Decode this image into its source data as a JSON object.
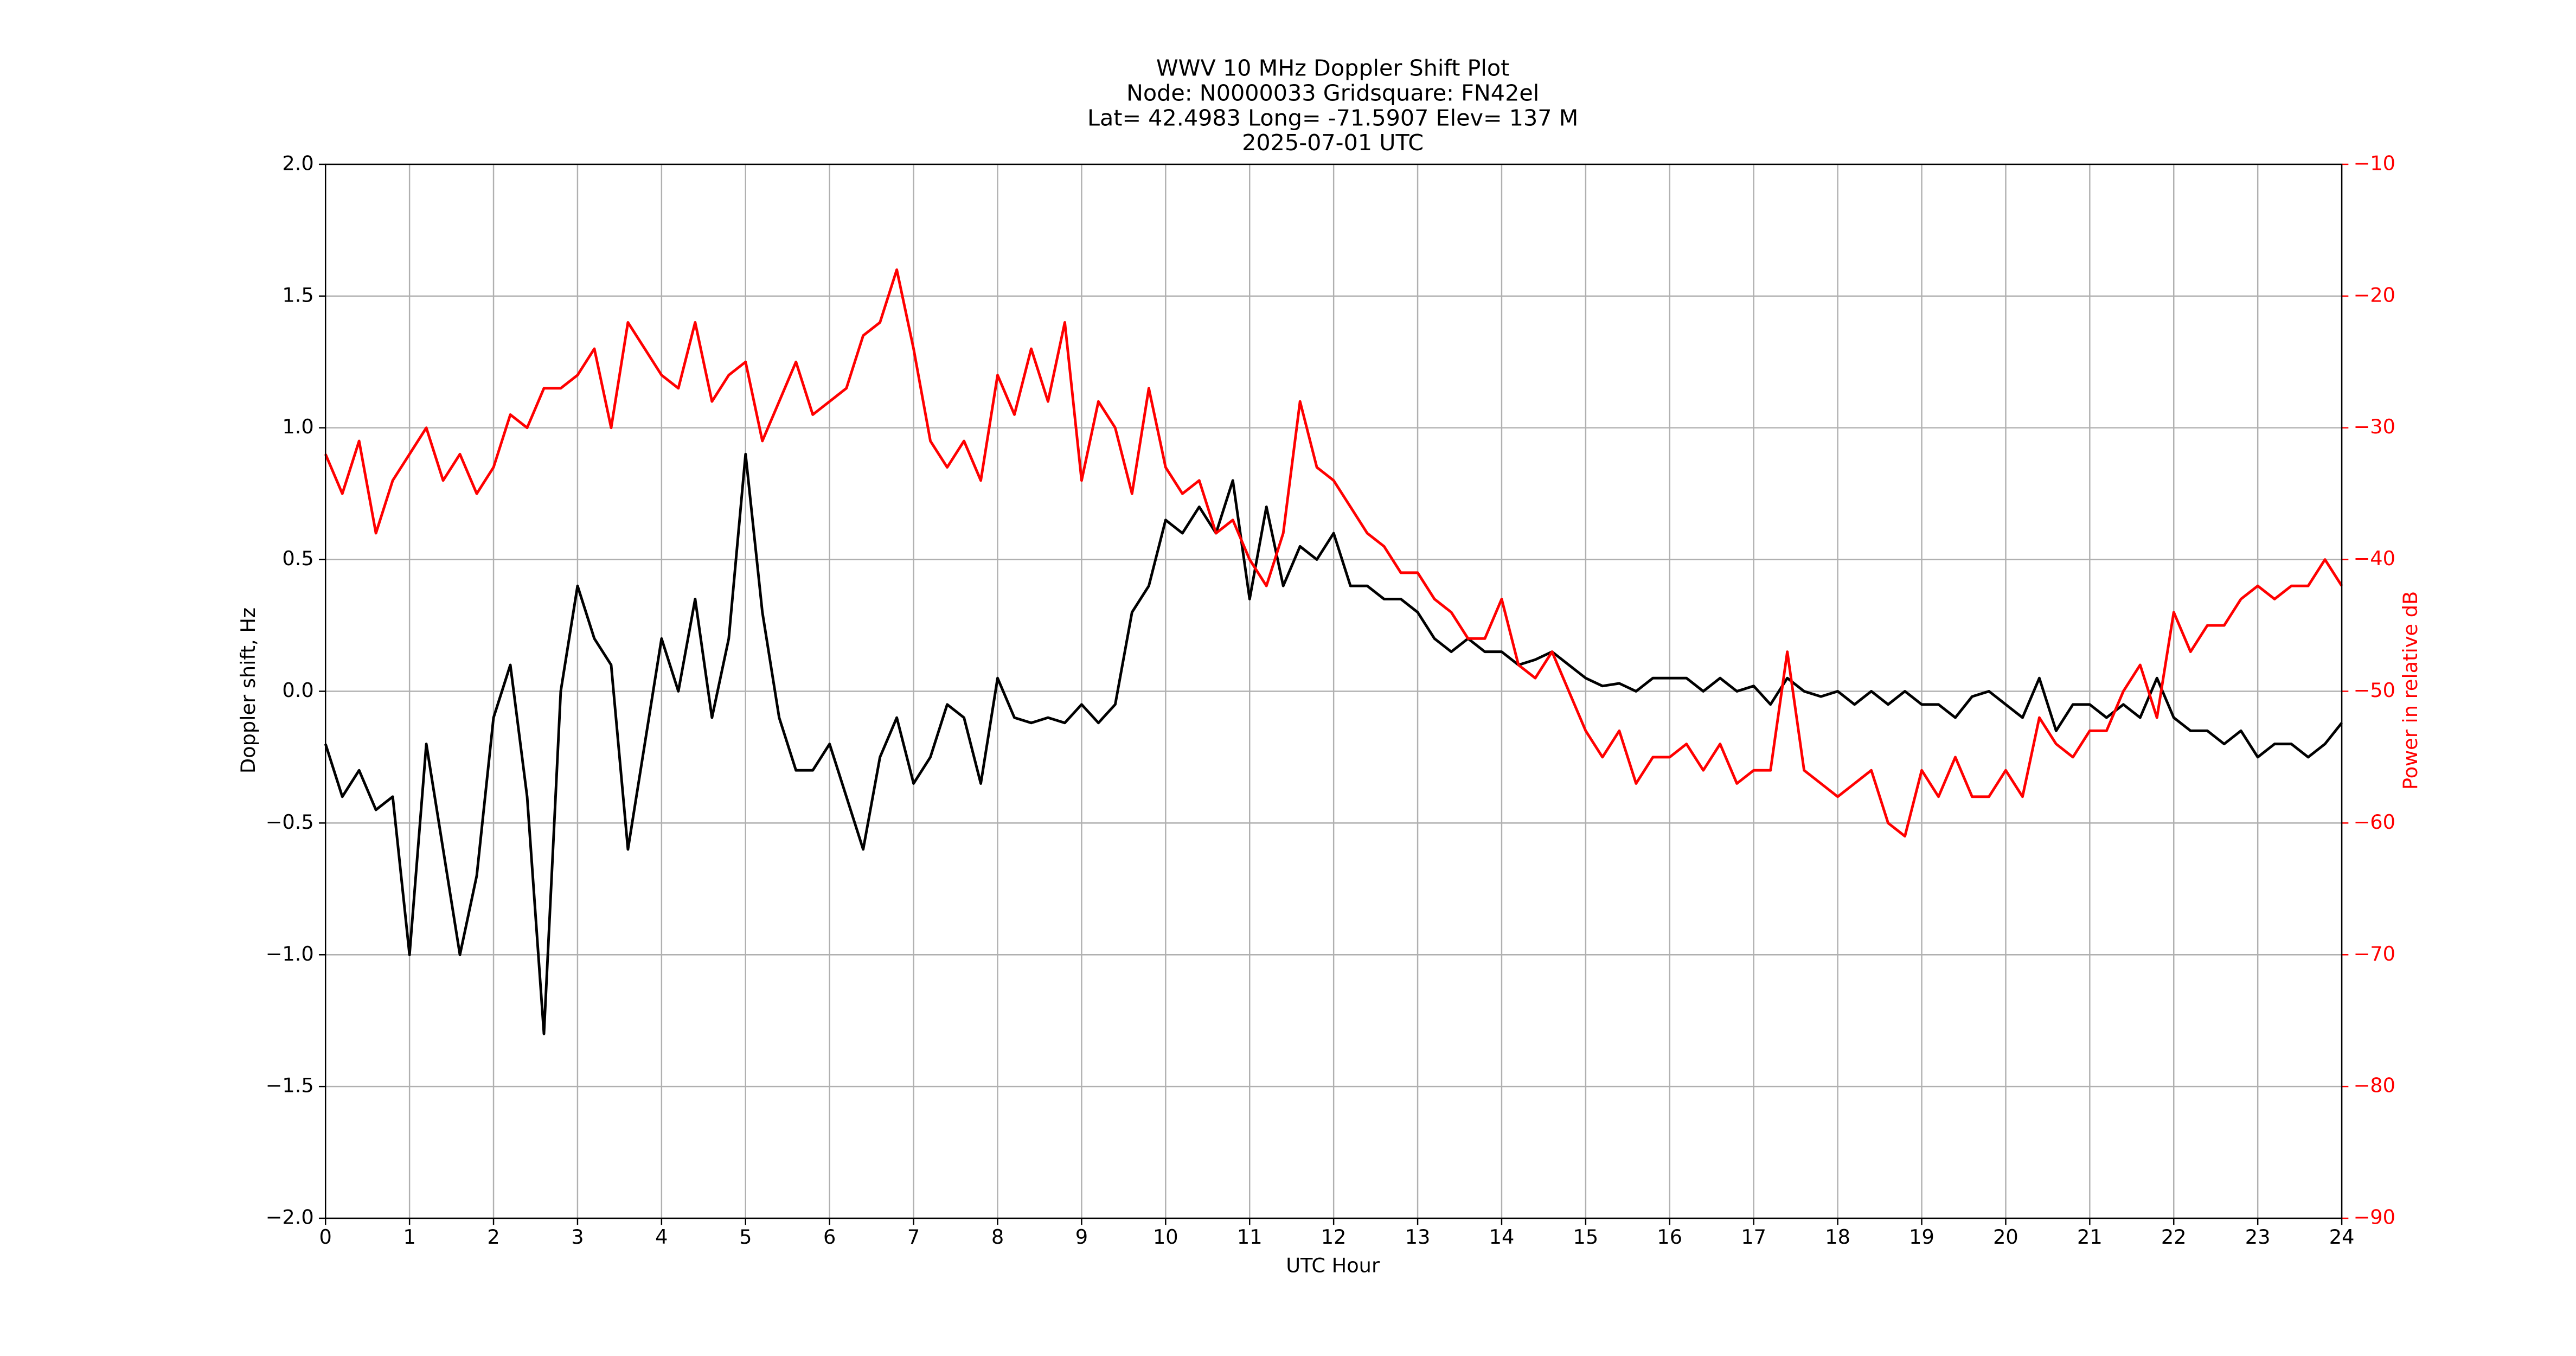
{
  "chart_data": {
    "type": "line",
    "title": [
      "WWV 10 MHz Doppler Shift Plot",
      "Node:  N0000033     Gridsquare:  FN42el",
      "Lat= 42.4983    Long= -71.5907    Elev= 137 M",
      "2025-07-01  UTC"
    ],
    "xlabel": "UTC Hour",
    "ylabel": "Doppler shift, Hz",
    "y2label": "Power in relative dB",
    "xlim": [
      0,
      24
    ],
    "xticks": [
      0,
      1,
      2,
      3,
      4,
      5,
      6,
      7,
      8,
      9,
      10,
      11,
      12,
      13,
      14,
      15,
      16,
      17,
      18,
      19,
      20,
      21,
      22,
      23,
      24
    ],
    "ylim": [
      -2,
      2
    ],
    "yticks": [
      {
        "value": -2,
        "label": "−2.0"
      },
      {
        "value": -1.5,
        "label": "−1.5"
      },
      {
        "value": -1,
        "label": "−1.0"
      },
      {
        "value": -0.5,
        "label": "−0.5"
      },
      {
        "value": 0,
        "label": "0.0"
      },
      0.5,
      {
        "value": 1,
        "label": "1.0"
      },
      1.5,
      {
        "value": 2,
        "label": "2.0"
      }
    ],
    "y2lim": [
      -90,
      -10
    ],
    "y2ticks": [
      {
        "value": -90,
        "label": "−90"
      },
      {
        "value": -80,
        "label": "−80"
      },
      {
        "value": -70,
        "label": "−70"
      },
      {
        "value": -60,
        "label": "−60"
      },
      {
        "value": -50,
        "label": "−50"
      },
      {
        "value": -40,
        "label": "−40"
      },
      {
        "value": -30,
        "label": "−30"
      },
      {
        "value": -20,
        "label": "−20"
      },
      {
        "value": -10,
        "label": "−10"
      }
    ],
    "grid": true,
    "x": [
      0,
      0.2,
      0.4,
      0.6,
      0.8,
      1,
      1.2,
      1.4,
      1.6,
      1.8,
      2,
      2.2,
      2.4,
      2.6,
      2.8,
      3,
      3.2,
      3.4,
      3.6,
      3.8,
      4,
      4.2,
      4.4,
      4.6,
      4.8,
      5,
      5.2,
      5.4,
      5.6,
      5.8,
      6,
      6.2,
      6.4,
      6.6,
      6.8,
      7,
      7.2,
      7.4,
      7.6,
      7.8,
      8,
      8.2,
      8.4,
      8.6,
      8.8,
      9,
      9.2,
      9.4,
      9.6,
      9.8,
      10,
      10.2,
      10.4,
      10.6,
      10.8,
      11,
      11.2,
      11.4,
      11.6,
      11.8,
      12,
      12.2,
      12.4,
      12.6,
      12.8,
      13,
      13.2,
      13.4,
      13.6,
      13.8,
      14,
      14.2,
      14.4,
      14.6,
      14.8,
      15,
      15.2,
      15.4,
      15.6,
      15.8,
      16,
      16.2,
      16.4,
      16.6,
      16.8,
      17,
      17.2,
      17.4,
      17.6,
      17.8,
      18,
      18.2,
      18.4,
      18.6,
      18.8,
      19,
      19.2,
      19.4,
      19.6,
      19.8,
      20,
      20.2,
      20.4,
      20.6,
      20.8,
      21,
      21.2,
      21.4,
      21.6,
      21.8,
      22,
      22.2,
      22.4,
      22.6,
      22.8,
      23,
      23.2,
      23.4,
      23.6,
      23.8,
      24
    ],
    "series": [
      {
        "color": "#000000",
        "values": [
          -0.2,
          -0.4,
          -0.3,
          -0.45,
          -0.4,
          -1.0,
          -0.2,
          -0.6,
          -1.0,
          -0.7,
          -0.1,
          0.1,
          -0.4,
          -1.3,
          0.0,
          0.4,
          0.2,
          0.1,
          -0.6,
          -0.2,
          0.2,
          0.0,
          0.35,
          -0.1,
          0.2,
          0.9,
          0.3,
          -0.1,
          -0.3,
          -0.3,
          -0.2,
          -0.4,
          -0.6,
          -0.25,
          -0.1,
          -0.35,
          -0.25,
          -0.05,
          -0.1,
          -0.35,
          0.05,
          -0.1,
          -0.12,
          -0.1,
          -0.12,
          -0.05,
          -0.12,
          -0.05,
          0.3,
          0.4,
          0.65,
          0.6,
          0.7,
          0.6,
          0.8,
          0.35,
          0.7,
          0.4,
          0.55,
          0.5,
          0.6,
          0.4,
          0.4,
          0.35,
          0.35,
          0.3,
          0.2,
          0.15,
          0.2,
          0.15,
          0.15,
          0.1,
          0.12,
          0.15,
          0.1,
          0.05,
          0.02,
          0.03,
          0.0,
          0.05,
          0.05,
          0.05,
          0.0,
          0.05,
          0.0,
          0.02,
          -0.05,
          0.05,
          0.0,
          -0.02,
          0.0,
          -0.05,
          0.0,
          -0.05,
          0.0,
          -0.05,
          -0.05,
          -0.1,
          -0.02,
          0.0,
          -0.05,
          -0.1,
          0.05,
          -0.15,
          -0.05,
          -0.05,
          -0.1,
          -0.05,
          -0.1,
          0.05,
          -0.1,
          -0.15,
          -0.15,
          -0.2,
          -0.15,
          -0.25,
          -0.2,
          -0.2,
          -0.25,
          -0.2,
          -0.12
        ]
      },
      {
        "color": "#ff0000",
        "axis": "y2",
        "values": [
          -32,
          -35,
          -31,
          -38,
          -34,
          -32,
          -30,
          -34,
          -32,
          -35,
          -33,
          -29,
          -30,
          -27,
          -27,
          -26,
          -24,
          -30,
          -22,
          -24,
          -26,
          -27,
          -22,
          -28,
          -26,
          -25,
          -31,
          -28,
          -25,
          -29,
          -28,
          -27,
          -23,
          -22,
          -18,
          -24,
          -31,
          -33,
          -31,
          -34,
          -26,
          -29,
          -24,
          -28,
          -22,
          -34,
          -28,
          -30,
          -35,
          -27,
          -33,
          -35,
          -34,
          -38,
          -37,
          -40,
          -42,
          -38,
          -28,
          -33,
          -34,
          -36,
          -38,
          -39,
          -41,
          -41,
          -43,
          -44,
          -46,
          -46,
          -43,
          -48,
          -49,
          -47,
          -50,
          -53,
          -55,
          -53,
          -57,
          -55,
          -55,
          -54,
          -56,
          -54,
          -57,
          -56,
          -56,
          -47,
          -56,
          -57,
          -58,
          -57,
          -56,
          -60,
          -61,
          -56,
          -58,
          -55,
          -58,
          -58,
          -56,
          -58,
          -52,
          -54,
          -55,
          -53,
          -53,
          -50,
          -48,
          -52,
          -44,
          -47,
          -45,
          -45,
          -43,
          -42,
          -43,
          -42,
          -42,
          -40,
          -42
        ]
      }
    ]
  }
}
